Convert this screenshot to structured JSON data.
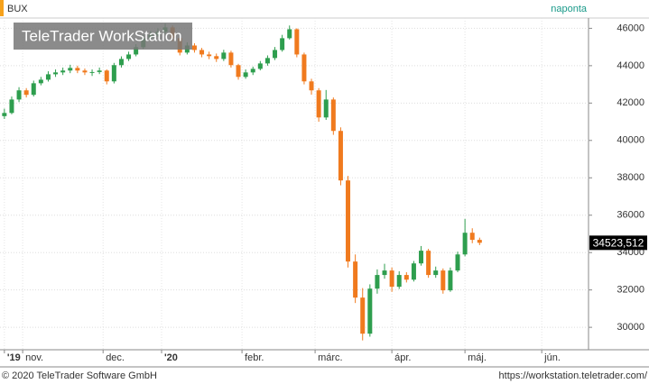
{
  "chart_data": {
    "type": "candlestick",
    "symbol": "BUX",
    "frequency": "naponta",
    "watermark": "TeleTrader WorkStation",
    "footer_left": "© 2020 TeleTrader Software GmbH",
    "footer_right": "https://workstation.teletrader.com/",
    "last_value_label": "34523,512",
    "up_color": "#2e9e4e",
    "down_color": "#f07a1e",
    "grid": true,
    "x": [
      0,
      2,
      4,
      6,
      8,
      10,
      12,
      14,
      16,
      18,
      20,
      22,
      24,
      26,
      28,
      30,
      32,
      34,
      36,
      38,
      40,
      42,
      44,
      46,
      48,
      50,
      52,
      54,
      56,
      58,
      60,
      62,
      64,
      66,
      68,
      70,
      72,
      74,
      76,
      78,
      80,
      82,
      84,
      86,
      88,
      90,
      92,
      94,
      96,
      98,
      100,
      102,
      104,
      106,
      108,
      110,
      112,
      114,
      116,
      118,
      120,
      122,
      124,
      126,
      128,
      130
    ],
    "open": [
      41300,
      41470,
      42190,
      42680,
      42440,
      43060,
      43250,
      43540,
      43640,
      43740,
      43880,
      43740,
      43640,
      43660,
      43740,
      43160,
      44030,
      44360,
      44600,
      44990,
      45470,
      45660,
      45810,
      46050,
      45470,
      44700,
      45080,
      44840,
      44600,
      44510,
      44360,
      44700,
      44030,
      43400,
      43640,
      43830,
      44120,
      44410,
      44840,
      45470,
      45950,
      44600,
      43160,
      42680,
      41230,
      42190,
      40510,
      37860,
      33520,
      31590,
      29660,
      32070,
      32800,
      33040,
      32170,
      32800,
      32550,
      33420,
      34100,
      32800,
      33040,
      31980,
      33040,
      33900,
      35060,
      34680
    ],
    "high": [
      41700,
      42350,
      42850,
      42800,
      43200,
      43400,
      43700,
      43800,
      43900,
      44050,
      44000,
      43850,
      43800,
      43900,
      43800,
      44150,
      44500,
      44750,
      45150,
      45650,
      45850,
      46000,
      46250,
      46150,
      45550,
      45250,
      45200,
      44950,
      44750,
      44650,
      44850,
      44800,
      44100,
      43800,
      43950,
      44250,
      44550,
      45000,
      45650,
      46150,
      46000,
      44700,
      43300,
      42800,
      42700,
      42300,
      40700,
      38100,
      33900,
      32100,
      32300,
      33100,
      33400,
      33200,
      33000,
      32950,
      33550,
      34350,
      34200,
      33250,
      33150,
      33200,
      34050,
      35800,
      35300,
      34800
    ],
    "low": [
      41150,
      41400,
      42050,
      42300,
      42350,
      42950,
      43150,
      43400,
      43500,
      43600,
      43600,
      43500,
      43450,
      43550,
      43000,
      43050,
      43900,
      44250,
      44500,
      44900,
      45350,
      45550,
      45700,
      45300,
      44550,
      44600,
      44700,
      44450,
      44350,
      44200,
      44250,
      43900,
      43250,
      43300,
      43500,
      43750,
      44000,
      44300,
      44750,
      45400,
      44450,
      43000,
      42450,
      41000,
      41100,
      40300,
      37600,
      33200,
      31300,
      29300,
      29500,
      31800,
      32600,
      31900,
      32050,
      32400,
      32450,
      33300,
      32650,
      32650,
      31800,
      31900,
      32950,
      33800,
      34500,
      34400
    ],
    "close": [
      41470,
      42190,
      42680,
      42440,
      43060,
      43250,
      43540,
      43640,
      43740,
      43880,
      43740,
      43640,
      43660,
      43740,
      43160,
      44030,
      44360,
      44600,
      44990,
      45470,
      45660,
      45810,
      46050,
      45470,
      44700,
      45080,
      44840,
      44600,
      44510,
      44360,
      44700,
      44030,
      43400,
      43640,
      43830,
      44120,
      44410,
      44840,
      45470,
      45950,
      44600,
      43160,
      42680,
      41230,
      42190,
      40510,
      37860,
      33520,
      31590,
      29660,
      32070,
      32800,
      33040,
      32170,
      32800,
      32550,
      33420,
      34100,
      32800,
      33040,
      31980,
      33040,
      33900,
      35060,
      34680,
      34523.512
    ],
    "xlim": [
      -1.2,
      159.8
    ],
    "xticks": [
      {
        "value": 0,
        "label": "'19"
      },
      {
        "value": 5,
        "label": "nov."
      },
      {
        "value": 27,
        "label": "dec."
      },
      {
        "value": 43,
        "label": "'20"
      },
      {
        "value": 65,
        "label": "febr."
      },
      {
        "value": 85,
        "label": "márc."
      },
      {
        "value": 106,
        "label": "ápr."
      },
      {
        "value": 126,
        "label": "máj."
      },
      {
        "value": 147,
        "label": "jún."
      }
    ],
    "ylim": [
      28800,
      46550
    ],
    "yticks": [
      30000,
      32000,
      34000,
      36000,
      38000,
      40000,
      42000,
      44000,
      46000
    ]
  }
}
